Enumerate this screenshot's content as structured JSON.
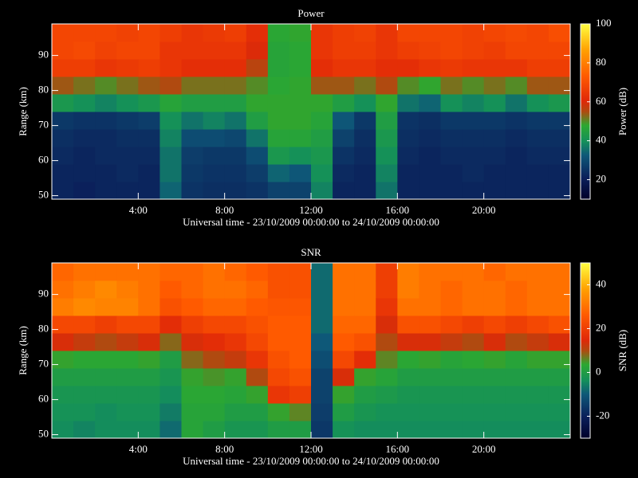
{
  "chart_data": [
    {
      "type": "heatmap",
      "title": "Power",
      "xlabel": "Universal time - 23/10/2009 00:00:00 to 24/10/2009 00:00:00",
      "ylabel": "Range (km)",
      "zlabel": "Power (dB)",
      "xlim": [
        0,
        24
      ],
      "ylim": [
        49,
        99
      ],
      "zlim": [
        10,
        100
      ],
      "xticks": [
        {
          "value": 4,
          "label": "4:00"
        },
        {
          "value": 8,
          "label": "8:00"
        },
        {
          "value": 12,
          "label": "12:00"
        },
        {
          "value": 16,
          "label": "16:00"
        },
        {
          "value": 20,
          "label": "20:00"
        }
      ],
      "yticks": [
        50,
        60,
        70,
        80,
        90
      ],
      "zticks": [
        20,
        40,
        60,
        80,
        100
      ],
      "x": [
        0.5,
        1.5,
        2.5,
        3.5,
        4.5,
        5.5,
        6.5,
        7.5,
        8.5,
        9.5,
        10.5,
        11.5,
        12.5,
        13.5,
        14.5,
        15.5,
        16.5,
        17.5,
        18.5,
        19.5,
        20.5,
        21.5,
        22.5,
        23.5
      ],
      "y": [
        51.5,
        56.5,
        61.5,
        66.5,
        71.5,
        76.5,
        81.5,
        86.5,
        91.5,
        96.5
      ],
      "values": [
        [
          22,
          22,
          23,
          24,
          26,
          42,
          54,
          66,
          68,
          68
        ],
        [
          21,
          22,
          22,
          23,
          25,
          40,
          52,
          66,
          69,
          68
        ],
        [
          22,
          22,
          23,
          23,
          25,
          38,
          50,
          64,
          67,
          68
        ],
        [
          22,
          23,
          23,
          24,
          26,
          40,
          52,
          65,
          68,
          67
        ],
        [
          22,
          22,
          23,
          24,
          27,
          42,
          54,
          66,
          68,
          68
        ],
        [
          34,
          36,
          36,
          38,
          40,
          46,
          55,
          64,
          64,
          66
        ],
        [
          25,
          26,
          27,
          30,
          36,
          44,
          52,
          62,
          64,
          64
        ],
        [
          24,
          25,
          26,
          30,
          38,
          44,
          52,
          62,
          64,
          65
        ],
        [
          24,
          25,
          26,
          29,
          36,
          44,
          52,
          62,
          64,
          66
        ],
        [
          25,
          27,
          30,
          36,
          44,
          48,
          50,
          56,
          60,
          62
        ],
        [
          28,
          34,
          42,
          46,
          48,
          48,
          47,
          46,
          46,
          47
        ],
        [
          28,
          32,
          40,
          46,
          48,
          48,
          48,
          47,
          47,
          48
        ],
        [
          38,
          40,
          42,
          44,
          46,
          48,
          54,
          62,
          64,
          64
        ],
        [
          22,
          23,
          25,
          28,
          32,
          44,
          54,
          64,
          66,
          66
        ],
        [
          22,
          22,
          23,
          24,
          26,
          40,
          52,
          64,
          66,
          67
        ],
        [
          36,
          38,
          40,
          42,
          44,
          48,
          55,
          62,
          64,
          64
        ],
        [
          22,
          22,
          23,
          24,
          25,
          36,
          50,
          62,
          66,
          68
        ],
        [
          22,
          22,
          22,
          23,
          24,
          34,
          48,
          64,
          67,
          68
        ],
        [
          22,
          22,
          23,
          24,
          26,
          40,
          52,
          65,
          68,
          68
        ],
        [
          22,
          23,
          23,
          24,
          26,
          38,
          50,
          64,
          67,
          67
        ],
        [
          22,
          22,
          23,
          24,
          26,
          40,
          52,
          64,
          66,
          68
        ],
        [
          22,
          22,
          22,
          23,
          25,
          36,
          50,
          64,
          68,
          69
        ],
        [
          22,
          22,
          23,
          24,
          26,
          40,
          54,
          66,
          68,
          68
        ],
        [
          22,
          22,
          23,
          24,
          26,
          42,
          54,
          66,
          68,
          70
        ]
      ]
    },
    {
      "type": "heatmap",
      "title": "SNR",
      "xlabel": "Universal time - 23/10/2009 00:00:00 to 24/10/2009 00:00:00",
      "ylabel": "Range (km)",
      "zlabel": "SNR (dB)",
      "xlim": [
        0,
        24
      ],
      "ylim": [
        49,
        99
      ],
      "zlim": [
        -30,
        50
      ],
      "xticks": [
        {
          "value": 4,
          "label": "4:00"
        },
        {
          "value": 8,
          "label": "8:00"
        },
        {
          "value": 12,
          "label": "12:00"
        },
        {
          "value": 16,
          "label": "16:00"
        },
        {
          "value": 20,
          "label": "20:00"
        }
      ],
      "yticks": [
        50,
        60,
        70,
        80,
        90
      ],
      "zticks": [
        -20,
        0,
        20,
        40
      ],
      "x": [
        0.5,
        1.5,
        2.5,
        3.5,
        4.5,
        5.5,
        6.5,
        7.5,
        8.5,
        9.5,
        10.5,
        11.5,
        12.5,
        13.5,
        14.5,
        15.5,
        16.5,
        17.5,
        18.5,
        19.5,
        20.5,
        21.5,
        22.5,
        23.5
      ],
      "y": [
        51.5,
        56.5,
        61.5,
        66.5,
        71.5,
        76.5,
        81.5,
        86.5,
        91.5,
        96.5
      ],
      "values": [
        [
          -4,
          -3,
          -2,
          0,
          4,
          14,
          22,
          32,
          30,
          28
        ],
        [
          -5,
          -3,
          -2,
          0,
          3,
          12,
          22,
          34,
          32,
          30
        ],
        [
          -4,
          -4,
          -2,
          0,
          3,
          10,
          20,
          33,
          34,
          30
        ],
        [
          -4,
          -3,
          -2,
          0,
          3,
          12,
          22,
          33,
          32,
          30
        ],
        [
          -4,
          -3,
          -2,
          0,
          4,
          14,
          22,
          30,
          30,
          30
        ],
        [
          -8,
          -6,
          -4,
          -2,
          0,
          8,
          16,
          24,
          26,
          28
        ],
        [
          2,
          2,
          3,
          4,
          8,
          14,
          20,
          26,
          28,
          28
        ],
        [
          0,
          2,
          3,
          5,
          10,
          16,
          22,
          28,
          30,
          30
        ],
        [
          -2,
          0,
          2,
          4,
          12,
          18,
          22,
          28,
          30,
          28
        ],
        [
          -2,
          0,
          4,
          10,
          18,
          22,
          24,
          26,
          28,
          26
        ],
        [
          0,
          4,
          18,
          22,
          24,
          26,
          26,
          25,
          24,
          24
        ],
        [
          0,
          6,
          20,
          24,
          26,
          26,
          26,
          25,
          24,
          24
        ],
        [
          -16,
          -15,
          -14,
          -14,
          -12,
          -10,
          -8,
          -8,
          -8,
          -8
        ],
        [
          -3,
          0,
          4,
          14,
          22,
          26,
          28,
          30,
          30,
          30
        ],
        [
          -4,
          -2,
          0,
          4,
          16,
          24,
          28,
          30,
          30,
          30
        ],
        [
          -4,
          -3,
          -1,
          2,
          6,
          10,
          14,
          18,
          20,
          20
        ],
        [
          -4,
          -3,
          -2,
          0,
          3,
          14,
          24,
          30,
          32,
          32
        ],
        [
          -4,
          -3,
          -2,
          0,
          4,
          14,
          24,
          30,
          30,
          30
        ],
        [
          -4,
          -3,
          -2,
          0,
          2,
          12,
          22,
          28,
          28,
          30
        ],
        [
          -4,
          -3,
          -2,
          0,
          3,
          10,
          20,
          30,
          30,
          30
        ],
        [
          -4,
          -3,
          -2,
          0,
          4,
          14,
          22,
          30,
          30,
          28
        ],
        [
          -4,
          -3,
          -2,
          0,
          2,
          10,
          20,
          28,
          28,
          30
        ],
        [
          -4,
          -3,
          -2,
          0,
          4,
          12,
          22,
          30,
          30,
          30
        ],
        [
          -4,
          -3,
          -2,
          0,
          4,
          14,
          24,
          30,
          30,
          30
        ]
      ]
    }
  ]
}
